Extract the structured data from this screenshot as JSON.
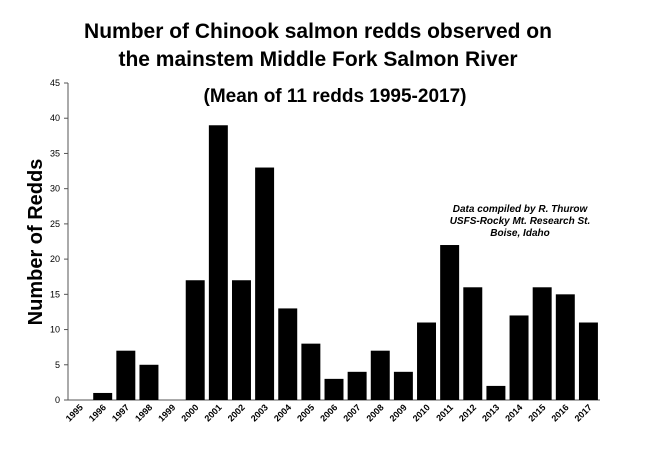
{
  "chart_data": {
    "type": "bar",
    "title_lines": [
      "Number of Chinook salmon redds observed on",
      "the mainstem Middle Fork Salmon River"
    ],
    "subtitle": "(Mean of 11 redds 1995-2017)",
    "annotation_lines": [
      "Data compiled by R. Thurow",
      "USFS-Rocky Mt. Research St.",
      "Boise, Idaho"
    ],
    "y_label": "Number of Redds",
    "categories": [
      "1995",
      "1996",
      "1997",
      "1998",
      "1999",
      "2000",
      "2001",
      "2002",
      "2003",
      "2004",
      "2005",
      "2006",
      "2007",
      "2008",
      "2009",
      "2010",
      "2011",
      "2012",
      "2013",
      "2014",
      "2015",
      "2016",
      "2017"
    ],
    "values": [
      0,
      1,
      7,
      5,
      0,
      17,
      39,
      17,
      33,
      13,
      8,
      3,
      4,
      7,
      4,
      11,
      22,
      16,
      2,
      12,
      16,
      15,
      11
    ],
    "color": "#000000",
    "ylim": [
      0,
      45
    ],
    "yticks": [
      0,
      5,
      10,
      15,
      20,
      25,
      30,
      35,
      40,
      45
    ],
    "grid": false
  }
}
